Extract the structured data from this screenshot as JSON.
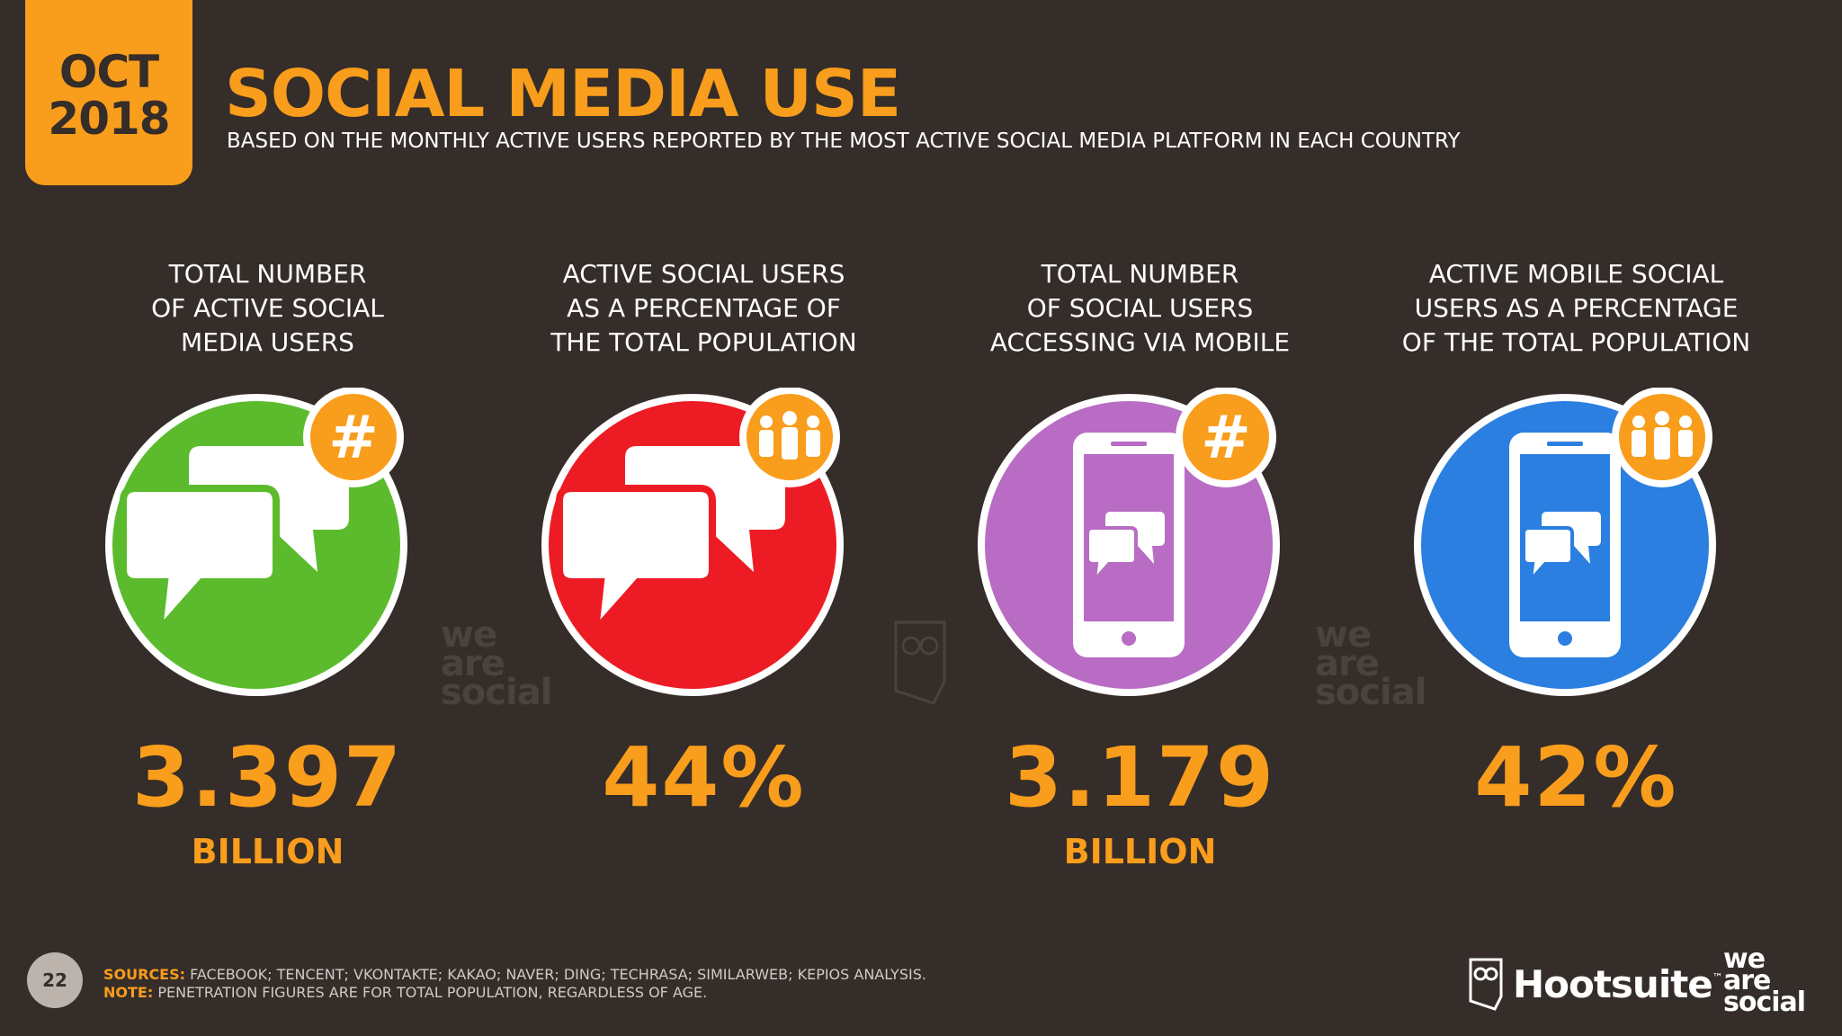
{
  "header": {
    "badge_month": "OCT",
    "badge_year": "2018",
    "title": "SOCIAL MEDIA USE",
    "subtitle": "BASED ON THE MONTHLY ACTIVE USERS REPORTED BY THE MOST ACTIVE SOCIAL MEDIA PLATFORM IN EACH COUNTRY"
  },
  "colors": {
    "background": "#352d29",
    "accent": "#f99d1c",
    "green": "#5bbb2d",
    "red": "#ed1c24",
    "purple": "#b86cc4",
    "blue": "#2a7fe0"
  },
  "stats": [
    {
      "label": "TOTAL NUMBER\nOF ACTIVE SOCIAL\nMEDIA USERS",
      "value": "3.397",
      "unit": "BILLION",
      "icon": "chat-bubbles-icon",
      "badge": "hashtag-icon",
      "color": "#5bbb2d"
    },
    {
      "label": "ACTIVE SOCIAL USERS\nAS A PERCENTAGE OF\nTHE TOTAL POPULATION",
      "value": "44%",
      "unit": "",
      "icon": "chat-bubbles-icon",
      "badge": "people-icon",
      "color": "#ed1c24"
    },
    {
      "label": "TOTAL NUMBER\nOF SOCIAL USERS\nACCESSING VIA MOBILE",
      "value": "3.179",
      "unit": "BILLION",
      "icon": "mobile-phone-icon",
      "badge": "hashtag-icon",
      "color": "#b86cc4"
    },
    {
      "label": "ACTIVE MOBILE SOCIAL\nUSERS AS A PERCENTAGE\nOF THE TOTAL POPULATION",
      "value": "42%",
      "unit": "",
      "icon": "mobile-phone-icon",
      "badge": "people-icon",
      "color": "#2a7fe0"
    }
  ],
  "watermarks": [
    "we\nare\nsocial",
    "we\nare\nsocial"
  ],
  "footer": {
    "page_number": "22",
    "sources_label": "SOURCES:",
    "sources_text": " FACEBOOK; TENCENT; VKONTAKTE; KAKAO; NAVER; DING; TECHRASA; SIMILARWEB; KEPIOS ANALYSIS.",
    "note_label": "NOTE:",
    "note_text": " PENETRATION FIGURES ARE FOR TOTAL POPULATION, REGARDLESS OF AGE.",
    "logo_hootsuite": "Hootsuite",
    "logo_trademark": "™",
    "logo_we": "we",
    "logo_are": "are",
    "logo_social": "social"
  }
}
